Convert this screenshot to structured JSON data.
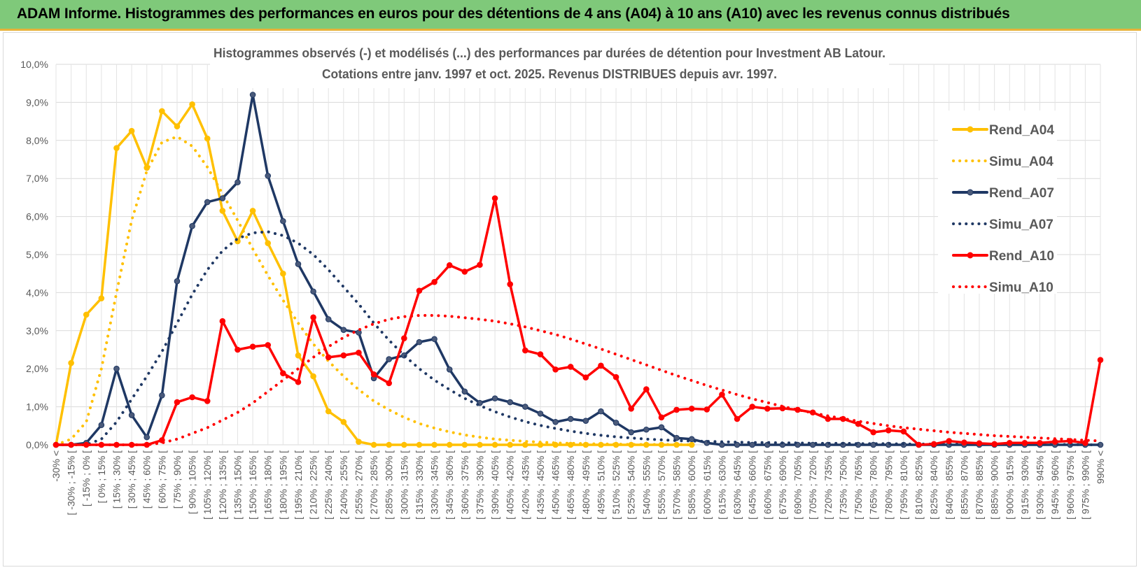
{
  "header": {
    "title": "ADAM Informe. Histogrammes des performances en euros pour des détentions de 4 ans (A04) à 10 ans (A10) avec les revenus connus distribués"
  },
  "chart_data": {
    "type": "line",
    "title": "Histogrammes observés (-) et modélisés (...) des performances par durées de détention pour Investment AB Latour.",
    "subtitle": "Cotations entre janv. 1997 et oct. 2025. Revenus DISTRIBUES depuis avr. 1997.",
    "xlabel": "",
    "ylabel": "",
    "ylim": [
      0,
      10
    ],
    "yticks": [
      "0,0%",
      "1,0%",
      "2,0%",
      "3,0%",
      "4,0%",
      "5,0%",
      "6,0%",
      "7,0%",
      "8,0%",
      "9,0%",
      "10,0%"
    ],
    "grid": true,
    "legend_position": "right",
    "categories": [
      "-30% <",
      "[ -30% ; -15% [",
      "[ -15% ; 0% [",
      "[ 0% ; 15% [",
      "[ 15% ; 30% [",
      "[ 30% ; 45% [",
      "[ 45% ; 60% [",
      "[ 60% ; 75% [",
      "[ 75% ; 90% [",
      "[ 90% ; 105% [",
      "[ 105% ; 120% [",
      "[ 120% ; 135% [",
      "[ 135% ; 150% [",
      "[ 150% ; 165% [",
      "[ 165% ; 180% [",
      "[ 180% ; 195% [",
      "[ 195% ; 210% [",
      "[ 210% ; 225% [",
      "[ 225% ; 240% [",
      "[ 240% ; 255% [",
      "[ 255% ; 270% [",
      "[ 270% ; 285% [",
      "[ 285% ; 300% [",
      "[ 300% ; 315% [",
      "[ 315% ; 330% [",
      "[ 330% ; 345% [",
      "[ 345% ; 360% [",
      "[ 360% ; 375% [",
      "[ 375% ; 390% [",
      "[ 390% ; 405% [",
      "[ 405% ; 420% [",
      "[ 420% ; 435% [",
      "[ 435% ; 450% [",
      "[ 450% ; 465% [",
      "[ 465% ; 480% [",
      "[ 480% ; 495% [",
      "[ 495% ; 510% [",
      "[ 510% ; 525% [",
      "[ 525% ; 540% [",
      "[ 540% ; 555% [",
      "[ 555% ; 570% [",
      "[ 570% ; 585% [",
      "[ 585% ; 600% [",
      "[ 600% ; 615% [",
      "[ 615% ; 630% [",
      "[ 630% ; 645% [",
      "[ 645% ; 660% [",
      "[ 660% ; 675% [",
      "[ 675% ; 690% [",
      "[ 690% ; 705% [",
      "[ 705% ; 720% [",
      "[ 720% ; 735% [",
      "[ 735% ; 750% [",
      "[ 750% ; 765% [",
      "[ 765% ; 780% [",
      "[ 780% ; 795% [",
      "[ 795% ; 810% [",
      "[ 810% ; 825% [",
      "[ 825% ; 840% [",
      "[ 840% ; 855% [",
      "[ 855% ; 870% [",
      "[ 870% ; 885% [",
      "[ 885% ; 900% [",
      "[ 900% ; 915% [",
      "[ 915% ; 930% [",
      "[ 930% ; 945% [",
      "[ 945% ; 960% [",
      "[ 960% ; 975% [",
      "[ 975% ; 990% [",
      "990% <"
    ],
    "series": [
      {
        "name": "Rend_A04",
        "color": "#ffc000",
        "style": "solid",
        "markers": true,
        "values": [
          0,
          2.15,
          3.42,
          3.85,
          7.8,
          8.25,
          7.28,
          8.77,
          8.37,
          8.95,
          8.05,
          6.15,
          5.35,
          6.15,
          5.3,
          4.5,
          2.35,
          1.8,
          0.88,
          0.6,
          0.08,
          0,
          0,
          0,
          0,
          0,
          0,
          0,
          0,
          0,
          0,
          0,
          0,
          0,
          0,
          0,
          0,
          0,
          0,
          0,
          0,
          0,
          0,
          null,
          null,
          null,
          null,
          null,
          null,
          null,
          null,
          null,
          null,
          null,
          null,
          null,
          null,
          null,
          null,
          null,
          null,
          null,
          null,
          null,
          null,
          null,
          null,
          null,
          null,
          null
        ]
      },
      {
        "name": "Simu_A04",
        "color": "#ffc000",
        "style": "dotted",
        "markers": false,
        "values": [
          0,
          0.15,
          0.6,
          2.0,
          4.0,
          5.9,
          7.2,
          7.95,
          8.1,
          7.85,
          7.3,
          6.6,
          5.9,
          5.15,
          4.45,
          3.8,
          3.2,
          2.65,
          2.2,
          1.8,
          1.45,
          1.15,
          0.92,
          0.72,
          0.56,
          0.44,
          0.34,
          0.26,
          0.2,
          0.15,
          0.12,
          0.09,
          0.07,
          0.05,
          0.04,
          0.03,
          0.02,
          0.02,
          0.01,
          0.01,
          0.01,
          0.01,
          0,
          null,
          null,
          null,
          null,
          null,
          null,
          null,
          null,
          null,
          null,
          null,
          null,
          null,
          null,
          null,
          null,
          null,
          null,
          null,
          null,
          null,
          null,
          null,
          null,
          null,
          null,
          null
        ]
      },
      {
        "name": "Rend_A07",
        "color": "#1f3864",
        "style": "solid",
        "markers": true,
        "values": [
          0,
          0,
          0.05,
          0.52,
          2.0,
          0.78,
          0.2,
          1.3,
          4.3,
          5.75,
          6.38,
          6.48,
          6.9,
          9.2,
          7.07,
          5.88,
          4.75,
          4.03,
          3.3,
          3.02,
          2.95,
          1.75,
          2.25,
          2.35,
          2.7,
          2.78,
          1.98,
          1.4,
          1.1,
          1.22,
          1.12,
          1.0,
          0.82,
          0.6,
          0.68,
          0.63,
          0.88,
          0.58,
          0.33,
          0.4,
          0.46,
          0.18,
          0.15,
          0.05,
          0,
          0,
          0,
          0,
          0,
          0,
          0,
          0,
          0,
          0,
          0,
          0,
          0,
          0,
          0,
          0,
          0,
          0,
          0,
          0,
          0,
          0,
          0,
          0,
          0,
          0
        ]
      },
      {
        "name": "Simu_A07",
        "color": "#1f3864",
        "style": "dotted",
        "markers": false,
        "values": [
          0,
          0,
          0,
          0.15,
          0.6,
          1.2,
          1.8,
          2.45,
          3.2,
          3.95,
          4.6,
          5.1,
          5.42,
          5.57,
          5.6,
          5.5,
          5.3,
          5.0,
          4.6,
          4.15,
          3.7,
          3.2,
          2.75,
          2.35,
          2.0,
          1.7,
          1.45,
          1.22,
          1.03,
          0.87,
          0.73,
          0.61,
          0.51,
          0.43,
          0.36,
          0.3,
          0.25,
          0.21,
          0.18,
          0.15,
          0.13,
          0.11,
          0.1,
          0.09,
          0.08,
          0.07,
          0.06,
          0.06,
          0.05,
          0.05,
          0.04,
          0.04,
          0.04,
          0.03,
          0.03,
          0.03,
          0.02,
          0.02,
          0.02,
          0.02,
          0.02,
          0.01,
          0.01,
          0.01,
          0.01,
          0.01,
          0.01,
          0.01,
          0,
          0
        ]
      },
      {
        "name": "Rend_A10",
        "color": "#ff0000",
        "style": "solid",
        "markers": true,
        "values": [
          0,
          0,
          0,
          0,
          0,
          0,
          0,
          0.12,
          1.12,
          1.25,
          1.15,
          3.25,
          2.5,
          2.58,
          2.62,
          1.88,
          1.65,
          3.35,
          2.3,
          2.35,
          2.42,
          1.85,
          1.62,
          2.8,
          4.05,
          4.28,
          4.72,
          4.55,
          4.73,
          6.48,
          4.22,
          2.48,
          2.38,
          1.98,
          2.05,
          1.77,
          2.08,
          1.78,
          0.95,
          1.46,
          0.72,
          0.92,
          0.95,
          0.93,
          1.32,
          0.68,
          1.0,
          0.95,
          0.96,
          0.92,
          0.85,
          0.68,
          0.68,
          0.55,
          0.33,
          0.38,
          0.35,
          0.0,
          0.02,
          0.1,
          0.06,
          0.04,
          0.02,
          0.05,
          0.05,
          0.05,
          0.08,
          0.1,
          0.05,
          2.23
        ]
      },
      {
        "name": "Simu_A10",
        "color": "#ff0000",
        "style": "dotted",
        "markers": false,
        "values": [
          0,
          0,
          0,
          0,
          0,
          0,
          0,
          0.05,
          0.15,
          0.3,
          0.45,
          0.65,
          0.85,
          1.1,
          1.4,
          1.7,
          2.0,
          2.3,
          2.58,
          2.82,
          3.02,
          3.18,
          3.3,
          3.37,
          3.4,
          3.4,
          3.38,
          3.34,
          3.3,
          3.25,
          3.18,
          3.1,
          3.0,
          2.9,
          2.78,
          2.65,
          2.52,
          2.38,
          2.24,
          2.1,
          1.96,
          1.82,
          1.69,
          1.56,
          1.44,
          1.32,
          1.21,
          1.11,
          1.01,
          0.92,
          0.84,
          0.76,
          0.69,
          0.62,
          0.56,
          0.5,
          0.45,
          0.41,
          0.37,
          0.33,
          0.3,
          0.27,
          0.24,
          0.22,
          0.2,
          0.18,
          0.16,
          0.14,
          0.12,
          0.1
        ]
      }
    ]
  }
}
